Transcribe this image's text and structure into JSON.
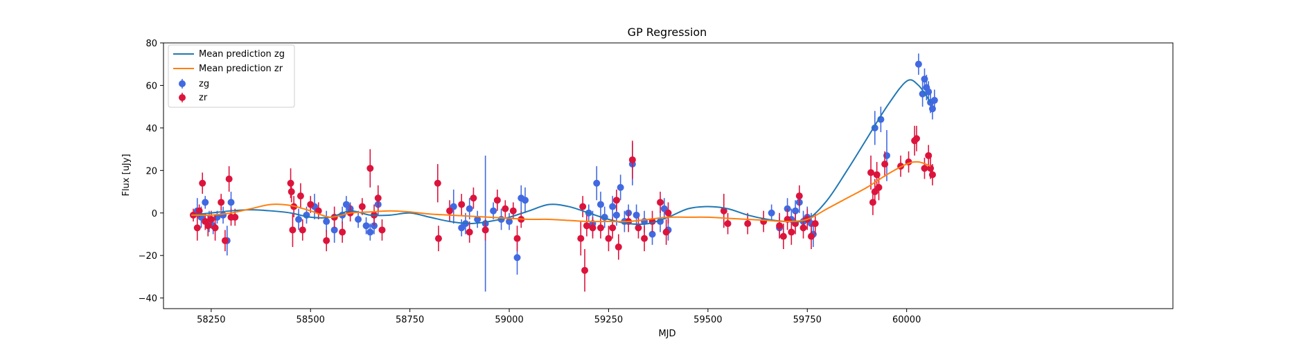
{
  "chart_data": {
    "type": "scatter",
    "title": "GP Regression",
    "xlabel": "MJD",
    "ylabel": "Flux [uJy]",
    "xlim": [
      58130,
      60670
    ],
    "ylim": [
      -45,
      80
    ],
    "xticks": [
      58250,
      58500,
      58750,
      59000,
      59250,
      59500,
      59750,
      60000
    ],
    "yticks": [
      -40,
      -20,
      0,
      20,
      40,
      60,
      80
    ],
    "grid": false,
    "legend_position": "top-left",
    "colors": {
      "zg": "#4169e1",
      "zr": "#dc143c",
      "mean_zg": "#1f77b4",
      "mean_zr": "#ff7f0e"
    },
    "lines": [
      {
        "name": "Mean prediction zg",
        "color": "#1f77b4",
        "x": [
          58200,
          58250,
          58300,
          58350,
          58400,
          58450,
          58500,
          58550,
          58600,
          58650,
          58700,
          58750,
          58800,
          58850,
          58900,
          58950,
          59000,
          59050,
          59100,
          59150,
          59200,
          59250,
          59300,
          59350,
          59400,
          59450,
          59500,
          59550,
          59600,
          59650,
          59700,
          59750,
          59800,
          59850,
          59900,
          59950,
          60000,
          60030,
          60060
        ],
        "y": [
          -1,
          0,
          1,
          1.5,
          1,
          0,
          -2,
          -2,
          1,
          -1,
          -1,
          0,
          -2,
          -4,
          -5,
          -4,
          -2,
          1,
          4,
          3,
          0,
          -3,
          -5,
          -5,
          -2,
          2,
          3,
          2,
          -1,
          -3,
          -4,
          -3,
          6,
          20,
          35,
          50,
          62,
          60,
          52
        ]
      },
      {
        "name": "Mean prediction zr",
        "color": "#ff7f0e",
        "x": [
          58200,
          58250,
          58300,
          58350,
          58400,
          58450,
          58500,
          58550,
          58600,
          58650,
          58700,
          58750,
          58800,
          58850,
          58900,
          58950,
          59000,
          59050,
          59100,
          59150,
          59200,
          59250,
          59300,
          59350,
          59400,
          59450,
          59500,
          59550,
          59600,
          59650,
          59700,
          59750,
          59800,
          59850,
          59900,
          59950,
          60000,
          60030,
          60060
        ],
        "y": [
          -1,
          -1,
          0,
          2,
          4,
          3.5,
          1,
          -2,
          0,
          0.5,
          1,
          0.5,
          -0.5,
          -1,
          -1.5,
          -2,
          -2.5,
          -3,
          -3,
          -3.5,
          -4,
          -4,
          -4,
          -3,
          -2,
          -2,
          -2,
          -2.5,
          -3,
          -3.5,
          -4,
          -3,
          2,
          7,
          12,
          18,
          23,
          24,
          22
        ]
      }
    ],
    "series": [
      {
        "name": "zg",
        "color": "#4169e1",
        "points": [
          {
            "x": 58215,
            "y": 1,
            "err": 6
          },
          {
            "x": 58225,
            "y": -2,
            "err": 5
          },
          {
            "x": 58235,
            "y": 5,
            "err": 3
          },
          {
            "x": 58245,
            "y": -4,
            "err": 5
          },
          {
            "x": 58255,
            "y": -6,
            "err": 4
          },
          {
            "x": 58265,
            "y": -2,
            "err": 3
          },
          {
            "x": 58280,
            "y": -1,
            "err": 4
          },
          {
            "x": 58290,
            "y": -13,
            "err": 7
          },
          {
            "x": 58300,
            "y": 5,
            "err": 5
          },
          {
            "x": 58470,
            "y": -3,
            "err": 5
          },
          {
            "x": 58490,
            "y": -1,
            "err": 4
          },
          {
            "x": 58510,
            "y": 3,
            "err": 6
          },
          {
            "x": 58540,
            "y": -4,
            "err": 5
          },
          {
            "x": 58560,
            "y": -8,
            "err": 6
          },
          {
            "x": 58580,
            "y": -1,
            "err": 4
          },
          {
            "x": 58590,
            "y": 4,
            "err": 4
          },
          {
            "x": 58600,
            "y": 2,
            "err": 3
          },
          {
            "x": 58620,
            "y": -3,
            "err": 4
          },
          {
            "x": 58640,
            "y": -6,
            "err": 4
          },
          {
            "x": 58650,
            "y": -9,
            "err": 4
          },
          {
            "x": 58660,
            "y": -6,
            "err": 4
          },
          {
            "x": 58670,
            "y": 4,
            "err": 5
          },
          {
            "x": 58860,
            "y": 3,
            "err": 8
          },
          {
            "x": 58880,
            "y": -7,
            "err": 4
          },
          {
            "x": 58890,
            "y": -5,
            "err": 5
          },
          {
            "x": 58900,
            "y": 2,
            "err": 5
          },
          {
            "x": 58920,
            "y": -3,
            "err": 4
          },
          {
            "x": 58940,
            "y": -5,
            "err": 32
          },
          {
            "x": 58960,
            "y": 1,
            "err": 4
          },
          {
            "x": 58980,
            "y": -3,
            "err": 5
          },
          {
            "x": 59000,
            "y": -4,
            "err": 4
          },
          {
            "x": 59020,
            "y": -21,
            "err": 8
          },
          {
            "x": 59030,
            "y": 7,
            "err": 6
          },
          {
            "x": 59040,
            "y": 6,
            "err": 6
          },
          {
            "x": 59200,
            "y": 0,
            "err": 4
          },
          {
            "x": 59210,
            "y": -5,
            "err": 6
          },
          {
            "x": 59220,
            "y": 14,
            "err": 8
          },
          {
            "x": 59230,
            "y": 4,
            "err": 6
          },
          {
            "x": 59240,
            "y": -2,
            "err": 5
          },
          {
            "x": 59260,
            "y": 3,
            "err": 5
          },
          {
            "x": 59270,
            "y": -1,
            "err": 5
          },
          {
            "x": 59280,
            "y": 12,
            "err": 6
          },
          {
            "x": 59290,
            "y": -4,
            "err": 5
          },
          {
            "x": 59300,
            "y": 0,
            "err": 4
          },
          {
            "x": 59310,
            "y": 23,
            "err": 10
          },
          {
            "x": 59320,
            "y": -1,
            "err": 5
          },
          {
            "x": 59340,
            "y": -4,
            "err": 5
          },
          {
            "x": 59360,
            "y": -10,
            "err": 5
          },
          {
            "x": 59380,
            "y": -4,
            "err": 5
          },
          {
            "x": 59390,
            "y": 2,
            "err": 5
          },
          {
            "x": 59400,
            "y": -8,
            "err": 5
          },
          {
            "x": 59660,
            "y": 0,
            "err": 4
          },
          {
            "x": 59680,
            "y": -7,
            "err": 5
          },
          {
            "x": 59700,
            "y": 2,
            "err": 5
          },
          {
            "x": 59710,
            "y": -3,
            "err": 5
          },
          {
            "x": 59720,
            "y": 1,
            "err": 5
          },
          {
            "x": 59730,
            "y": 5,
            "err": 5
          },
          {
            "x": 59740,
            "y": -4,
            "err": 5
          },
          {
            "x": 59750,
            "y": -2,
            "err": 5
          },
          {
            "x": 59760,
            "y": -5,
            "err": 5
          },
          {
            "x": 59765,
            "y": -10,
            "err": 6
          },
          {
            "x": 59920,
            "y": 40,
            "err": 8
          },
          {
            "x": 59935,
            "y": 44,
            "err": 6
          },
          {
            "x": 59950,
            "y": 27,
            "err": 12
          },
          {
            "x": 60030,
            "y": 70,
            "err": 5
          },
          {
            "x": 60040,
            "y": 56,
            "err": 6
          },
          {
            "x": 60045,
            "y": 63,
            "err": 5
          },
          {
            "x": 60050,
            "y": 59,
            "err": 6
          },
          {
            "x": 60055,
            "y": 57,
            "err": 5
          },
          {
            "x": 60060,
            "y": 52,
            "err": 5
          },
          {
            "x": 60065,
            "y": 49,
            "err": 5
          },
          {
            "x": 60070,
            "y": 53,
            "err": 5
          }
        ]
      },
      {
        "name": "zr",
        "color": "#dc143c",
        "points": [
          {
            "x": 58205,
            "y": -1,
            "err": 3
          },
          {
            "x": 58215,
            "y": -7,
            "err": 6
          },
          {
            "x": 58220,
            "y": 1,
            "err": 3
          },
          {
            "x": 58228,
            "y": 14,
            "err": 5
          },
          {
            "x": 58235,
            "y": -4,
            "err": 4
          },
          {
            "x": 58242,
            "y": -6,
            "err": 5
          },
          {
            "x": 58250,
            "y": -3,
            "err": 4
          },
          {
            "x": 58260,
            "y": -7,
            "err": 6
          },
          {
            "x": 58275,
            "y": 5,
            "err": 4
          },
          {
            "x": 58285,
            "y": -13,
            "err": 5
          },
          {
            "x": 58295,
            "y": 16,
            "err": 6
          },
          {
            "x": 58300,
            "y": -2,
            "err": 4
          },
          {
            "x": 58310,
            "y": -2,
            "err": 4
          },
          {
            "x": 58450,
            "y": 14,
            "err": 7
          },
          {
            "x": 58452,
            "y": 10,
            "err": 5
          },
          {
            "x": 58455,
            "y": -8,
            "err": 8
          },
          {
            "x": 58458,
            "y": 3,
            "err": 5
          },
          {
            "x": 58475,
            "y": 8,
            "err": 6
          },
          {
            "x": 58480,
            "y": -8,
            "err": 5
          },
          {
            "x": 58500,
            "y": 4,
            "err": 4
          },
          {
            "x": 58520,
            "y": 1,
            "err": 4
          },
          {
            "x": 58540,
            "y": -13,
            "err": 5
          },
          {
            "x": 58560,
            "y": -2,
            "err": 5
          },
          {
            "x": 58580,
            "y": -9,
            "err": 5
          },
          {
            "x": 58600,
            "y": 0,
            "err": 4
          },
          {
            "x": 58630,
            "y": 3,
            "err": 4
          },
          {
            "x": 58650,
            "y": 21,
            "err": 9
          },
          {
            "x": 58660,
            "y": -1,
            "err": 5
          },
          {
            "x": 58670,
            "y": 7,
            "err": 6
          },
          {
            "x": 58680,
            "y": -8,
            "err": 5
          },
          {
            "x": 58820,
            "y": 14,
            "err": 9
          },
          {
            "x": 58822,
            "y": -12,
            "err": 6
          },
          {
            "x": 58850,
            "y": 1,
            "err": 5
          },
          {
            "x": 58880,
            "y": 4,
            "err": 5
          },
          {
            "x": 58900,
            "y": -9,
            "err": 5
          },
          {
            "x": 58910,
            "y": 7,
            "err": 5
          },
          {
            "x": 58940,
            "y": -8,
            "err": 5
          },
          {
            "x": 58970,
            "y": 6,
            "err": 5
          },
          {
            "x": 58990,
            "y": 2,
            "err": 4
          },
          {
            "x": 59010,
            "y": 1,
            "err": 4
          },
          {
            "x": 59020,
            "y": -12,
            "err": 6
          },
          {
            "x": 59030,
            "y": -3,
            "err": 4
          },
          {
            "x": 59180,
            "y": -12,
            "err": 8
          },
          {
            "x": 59185,
            "y": 3,
            "err": 5
          },
          {
            "x": 59190,
            "y": -27,
            "err": 10
          },
          {
            "x": 59195,
            "y": -6,
            "err": 5
          },
          {
            "x": 59210,
            "y": -7,
            "err": 5
          },
          {
            "x": 59230,
            "y": -7,
            "err": 5
          },
          {
            "x": 59250,
            "y": -12,
            "err": 6
          },
          {
            "x": 59260,
            "y": -7,
            "err": 5
          },
          {
            "x": 59270,
            "y": 6,
            "err": 5
          },
          {
            "x": 59275,
            "y": -16,
            "err": 6
          },
          {
            "x": 59300,
            "y": -4,
            "err": 5
          },
          {
            "x": 59310,
            "y": 25,
            "err": 9
          },
          {
            "x": 59325,
            "y": -7,
            "err": 5
          },
          {
            "x": 59340,
            "y": -12,
            "err": 6
          },
          {
            "x": 59360,
            "y": -4,
            "err": 5
          },
          {
            "x": 59380,
            "y": 5,
            "err": 5
          },
          {
            "x": 59395,
            "y": -9,
            "err": 6
          },
          {
            "x": 59400,
            "y": 0,
            "err": 5
          },
          {
            "x": 59540,
            "y": 1,
            "err": 8
          },
          {
            "x": 59550,
            "y": -5,
            "err": 5
          },
          {
            "x": 59600,
            "y": -5,
            "err": 5
          },
          {
            "x": 59640,
            "y": -4,
            "err": 5
          },
          {
            "x": 59680,
            "y": -6,
            "err": 6
          },
          {
            "x": 59690,
            "y": -11,
            "err": 6
          },
          {
            "x": 59700,
            "y": -3,
            "err": 5
          },
          {
            "x": 59710,
            "y": -9,
            "err": 6
          },
          {
            "x": 59720,
            "y": -5,
            "err": 5
          },
          {
            "x": 59730,
            "y": 8,
            "err": 5
          },
          {
            "x": 59740,
            "y": -7,
            "err": 5
          },
          {
            "x": 59750,
            "y": -3,
            "err": 5
          },
          {
            "x": 59760,
            "y": -11,
            "err": 6
          },
          {
            "x": 59770,
            "y": -5,
            "err": 5
          },
          {
            "x": 59910,
            "y": 19,
            "err": 8
          },
          {
            "x": 59915,
            "y": 5,
            "err": 6
          },
          {
            "x": 59920,
            "y": 10,
            "err": 6
          },
          {
            "x": 59925,
            "y": 18,
            "err": 6
          },
          {
            "x": 59930,
            "y": 12,
            "err": 6
          },
          {
            "x": 59945,
            "y": 23,
            "err": 6
          },
          {
            "x": 59985,
            "y": 22,
            "err": 5
          },
          {
            "x": 60005,
            "y": 24,
            "err": 5
          },
          {
            "x": 60020,
            "y": 34,
            "err": 7
          },
          {
            "x": 60025,
            "y": 35,
            "err": 6
          },
          {
            "x": 60045,
            "y": 21,
            "err": 5
          },
          {
            "x": 60055,
            "y": 27,
            "err": 5
          },
          {
            "x": 60060,
            "y": 21,
            "err": 5
          },
          {
            "x": 60065,
            "y": 18,
            "err": 5
          }
        ]
      }
    ]
  }
}
